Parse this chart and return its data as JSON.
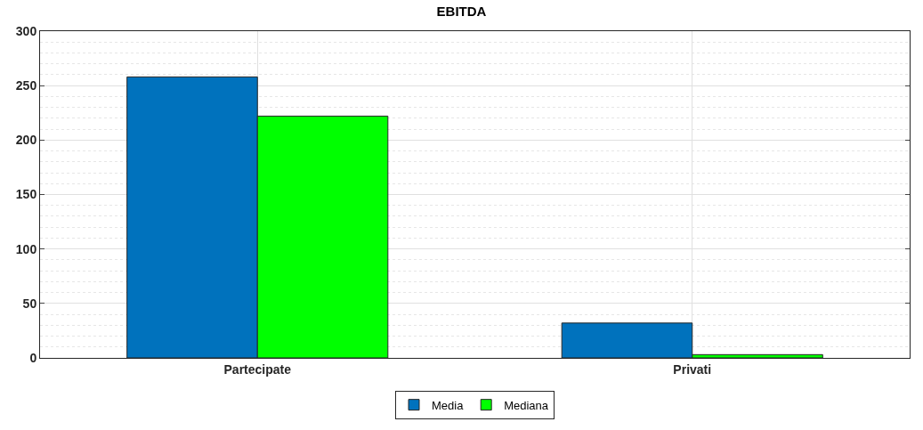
{
  "chart_data": {
    "type": "bar",
    "title": "EBITDA",
    "categories": [
      "Partecipate",
      "Privati"
    ],
    "series": [
      {
        "name": "Media",
        "color": "#0072bd",
        "values": [
          258,
          32
        ]
      },
      {
        "name": "Mediana",
        "color": "#00ff00",
        "values": [
          222,
          3
        ]
      }
    ],
    "ylim": [
      0,
      300
    ],
    "yticks": [
      0,
      50,
      100,
      150,
      200,
      250,
      300
    ],
    "grid": true,
    "legend": "bottom"
  }
}
